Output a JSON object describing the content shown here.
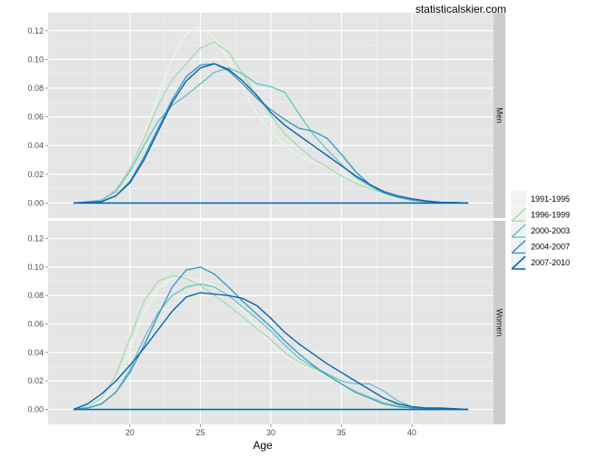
{
  "watermark": "statisticalskier.com",
  "chart_data": {
    "type": "line",
    "subtype": "density",
    "xlabel": "Age",
    "ylabel": "",
    "xlim": [
      14.2,
      45.8
    ],
    "ylim": [
      -0.0105,
      0.1325
    ],
    "x_ticks": [
      20,
      25,
      30,
      35,
      40
    ],
    "y_ticks": [
      0.0,
      0.02,
      0.04,
      0.06,
      0.08,
      0.1,
      0.12
    ],
    "y_tick_labels": [
      "0.00",
      "0.02",
      "0.04",
      "0.06",
      "0.08",
      "0.10",
      "0.12"
    ],
    "grid": true,
    "legend_position": "right",
    "legend": [
      "1991-1995",
      "1996-1999",
      "2000-2003",
      "2004-2007",
      "2007-2010"
    ],
    "colors": [
      "#eaf6e4",
      "#a8ddb5",
      "#6dc6c4",
      "#3a9cc8",
      "#0a64ad"
    ],
    "panels": [
      {
        "name": "Men",
        "series": [
          {
            "name": "1991-1995",
            "x": [
              16,
              18,
              19,
              20,
              21,
              22,
              23,
              24,
              25,
              26,
              27,
              28,
              29,
              30,
              31,
              32,
              33,
              34,
              35,
              36,
              37,
              38,
              39,
              40,
              41,
              42,
              44
            ],
            "y": [
              0,
              0.002,
              0.008,
              0.022,
              0.047,
              0.075,
              0.1,
              0.118,
              0.123,
              0.115,
              0.1,
              0.08,
              0.062,
              0.05,
              0.04,
              0.033,
              0.028,
              0.025,
              0.02,
              0.015,
              0.01,
              0.006,
              0.003,
              0.002,
              0.001,
              0.0005,
              0
            ]
          },
          {
            "name": "1996-1999",
            "x": [
              16,
              18,
              19,
              20,
              21,
              22,
              23,
              24,
              25,
              26,
              27,
              28,
              29,
              30,
              31,
              32,
              33,
              34,
              35,
              36,
              37,
              38,
              39,
              40,
              41,
              42,
              44
            ],
            "y": [
              0,
              0.002,
              0.009,
              0.024,
              0.045,
              0.068,
              0.086,
              0.097,
              0.108,
              0.112,
              0.105,
              0.09,
              0.074,
              0.061,
              0.048,
              0.039,
              0.031,
              0.025,
              0.019,
              0.014,
              0.01,
              0.007,
              0.004,
              0.002,
              0.001,
              0.0005,
              0
            ]
          },
          {
            "name": "2000-2003",
            "x": [
              16,
              18,
              19,
              20,
              21,
              22,
              23,
              24,
              25,
              26,
              27,
              28,
              29,
              30,
              31,
              32,
              33,
              34,
              35,
              36,
              37,
              38,
              39,
              40,
              41,
              42,
              44
            ],
            "y": [
              0,
              0.002,
              0.008,
              0.022,
              0.04,
              0.057,
              0.068,
              0.075,
              0.083,
              0.091,
              0.094,
              0.09,
              0.083,
              0.081,
              0.077,
              0.062,
              0.048,
              0.037,
              0.027,
              0.018,
              0.012,
              0.007,
              0.004,
              0.002,
              0.001,
              0.0005,
              0
            ]
          },
          {
            "name": "2004-2007",
            "x": [
              16,
              18,
              19,
              20,
              21,
              22,
              23,
              24,
              25,
              26,
              27,
              28,
              29,
              30,
              31,
              32,
              33,
              34,
              35,
              36,
              37,
              38,
              39,
              40,
              41,
              42,
              44
            ],
            "y": [
              0,
              0.001,
              0.005,
              0.015,
              0.032,
              0.052,
              0.072,
              0.088,
              0.096,
              0.097,
              0.092,
              0.083,
              0.073,
              0.065,
              0.058,
              0.052,
              0.05,
              0.045,
              0.034,
              0.022,
              0.013,
              0.007,
              0.004,
              0.002,
              0.001,
              0.0005,
              0
            ]
          },
          {
            "name": "2007-2010",
            "x": [
              16,
              18,
              19,
              20,
              21,
              22,
              23,
              24,
              25,
              26,
              27,
              28,
              29,
              30,
              31,
              32,
              33,
              34,
              35,
              36,
              37,
              38,
              39,
              40,
              41,
              42,
              44
            ],
            "y": [
              0,
              0.001,
              0.005,
              0.014,
              0.03,
              0.05,
              0.07,
              0.085,
              0.094,
              0.097,
              0.093,
              0.085,
              0.075,
              0.063,
              0.054,
              0.047,
              0.04,
              0.033,
              0.026,
              0.019,
              0.013,
              0.008,
              0.005,
              0.003,
              0.0015,
              0.0005,
              0
            ]
          }
        ]
      },
      {
        "name": "Women",
        "series": [
          {
            "name": "1991-1995",
            "x": [
              16,
              17,
              18,
              19,
              20,
              21,
              22,
              23,
              24,
              25,
              26,
              27,
              28,
              29,
              30,
              31,
              32,
              33,
              34,
              35,
              36,
              37,
              38,
              39,
              40,
              41,
              44
            ],
            "y": [
              0,
              0.002,
              0.006,
              0.018,
              0.042,
              0.068,
              0.085,
              0.092,
              0.093,
              0.091,
              0.087,
              0.08,
              0.07,
              0.058,
              0.046,
              0.037,
              0.032,
              0.028,
              0.023,
              0.017,
              0.012,
              0.008,
              0.004,
              0.002,
              0.001,
              0.0005,
              0
            ]
          },
          {
            "name": "1996-1999",
            "x": [
              16,
              17,
              18,
              19,
              20,
              21,
              22,
              23,
              24,
              25,
              26,
              27,
              28,
              29,
              30,
              31,
              32,
              33,
              34,
              35,
              36,
              37,
              38,
              39,
              40,
              41,
              44
            ],
            "y": [
              0,
              0.002,
              0.008,
              0.024,
              0.05,
              0.076,
              0.09,
              0.094,
              0.092,
              0.087,
              0.08,
              0.073,
              0.065,
              0.057,
              0.049,
              0.04,
              0.033,
              0.029,
              0.024,
              0.018,
              0.013,
              0.009,
              0.005,
              0.003,
              0.001,
              0.0005,
              0
            ]
          },
          {
            "name": "2000-2003",
            "x": [
              16,
              17,
              18,
              19,
              20,
              21,
              22,
              23,
              24,
              25,
              26,
              27,
              28,
              29,
              30,
              31,
              32,
              33,
              34,
              35,
              36,
              37,
              38,
              39,
              40,
              41,
              44
            ],
            "y": [
              0,
              0.001,
              0.004,
              0.012,
              0.028,
              0.05,
              0.068,
              0.08,
              0.086,
              0.088,
              0.086,
              0.08,
              0.072,
              0.064,
              0.055,
              0.045,
              0.036,
              0.03,
              0.025,
              0.02,
              0.018,
              0.018,
              0.013,
              0.006,
              0.002,
              0.0005,
              0
            ]
          },
          {
            "name": "2004-2007",
            "x": [
              16,
              17,
              18,
              19,
              20,
              21,
              22,
              23,
              24,
              25,
              26,
              27,
              28,
              29,
              30,
              31,
              32,
              33,
              34,
              35,
              36,
              37,
              38,
              39,
              40,
              41,
              44
            ],
            "y": [
              0,
              0.001,
              0.004,
              0.012,
              0.026,
              0.045,
              0.066,
              0.086,
              0.098,
              0.1,
              0.095,
              0.086,
              0.076,
              0.067,
              0.058,
              0.048,
              0.039,
              0.031,
              0.024,
              0.018,
              0.012,
              0.008,
              0.004,
              0.002,
              0.001,
              0.0005,
              0
            ]
          },
          {
            "name": "2007-2010",
            "x": [
              16,
              17,
              18,
              19,
              20,
              21,
              22,
              23,
              24,
              25,
              26,
              27,
              28,
              29,
              30,
              31,
              32,
              33,
              34,
              35,
              36,
              37,
              38,
              39,
              40,
              41,
              42,
              44
            ],
            "y": [
              0,
              0.004,
              0.011,
              0.02,
              0.031,
              0.043,
              0.056,
              0.069,
              0.079,
              0.082,
              0.081,
              0.08,
              0.078,
              0.073,
              0.064,
              0.054,
              0.046,
              0.039,
              0.032,
              0.026,
              0.02,
              0.014,
              0.008,
              0.004,
              0.002,
              0.001,
              0.001,
              0
            ]
          }
        ]
      }
    ]
  }
}
